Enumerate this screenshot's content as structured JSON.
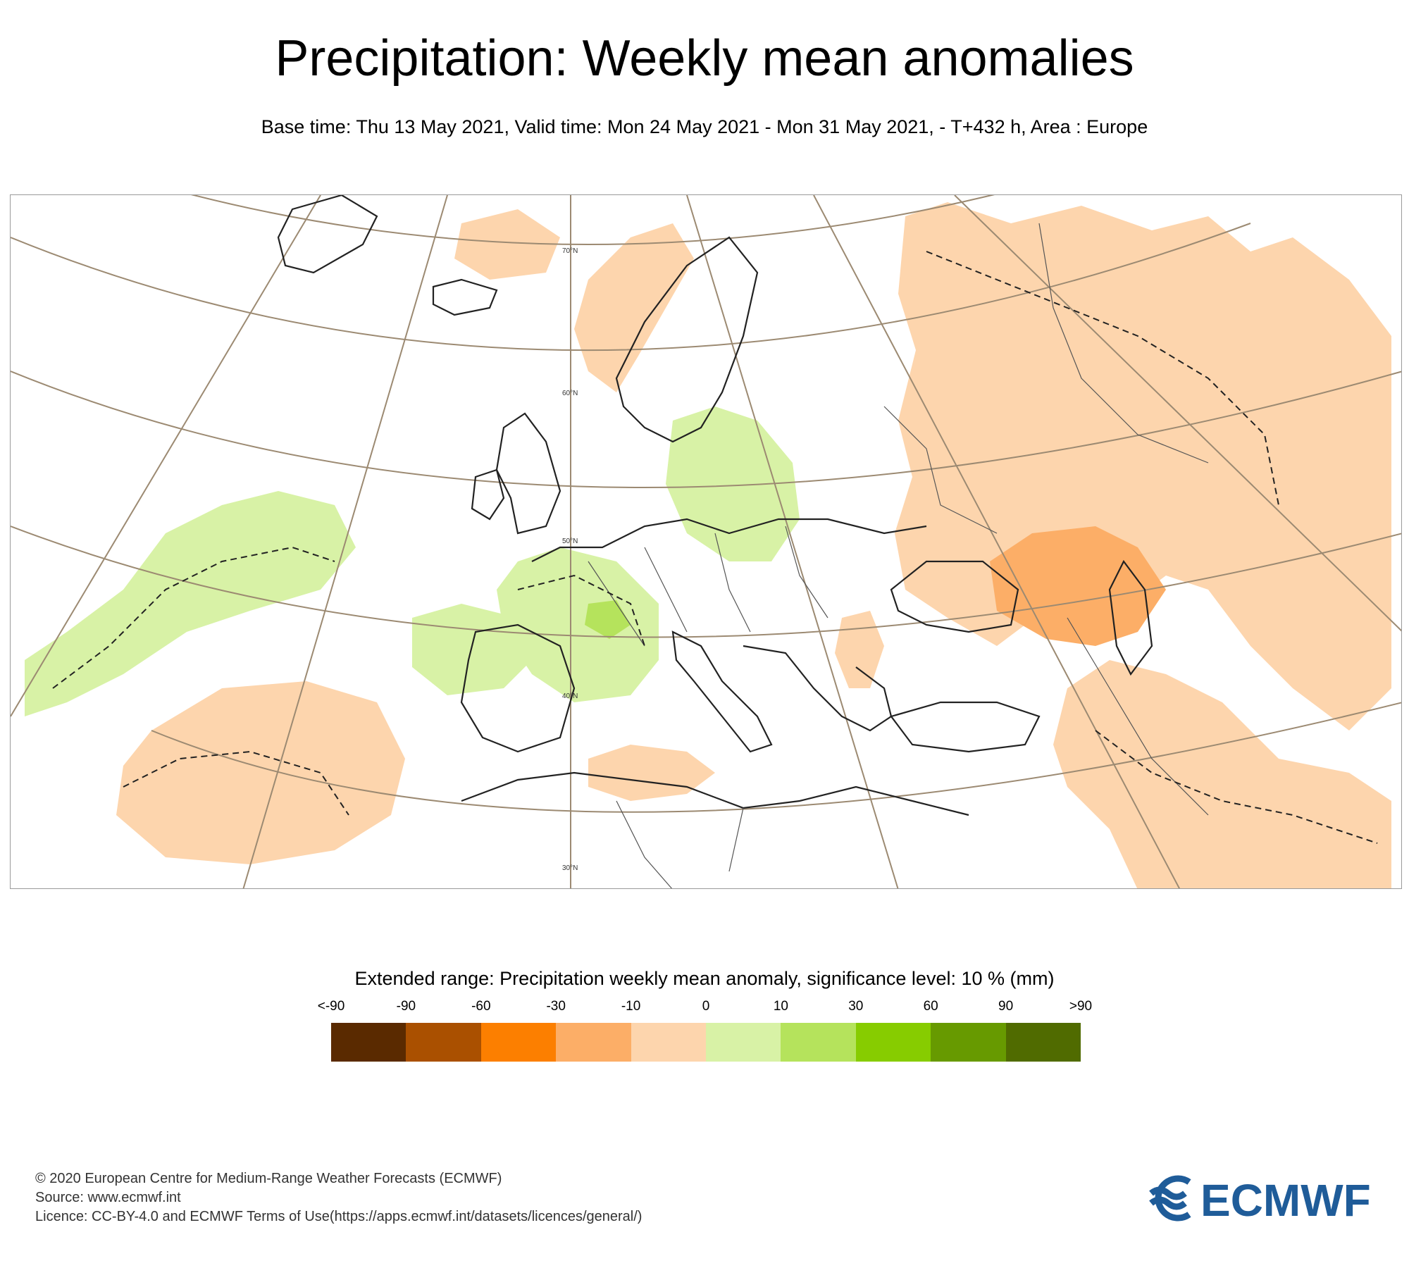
{
  "header": {
    "title": "Precipitation: Weekly mean anomalies",
    "subtitle": "Base time: Thu 13 May 2021, Valid time: Mon 24 May 2021 - Mon 31 May 2021, - T+432 h, Area : Europe"
  },
  "map": {
    "area": "Europe",
    "latitude_labels": [
      "70°N",
      "60°N",
      "50°N",
      "40°N",
      "30°N"
    ],
    "colors": {
      "land_outline": "#222222",
      "graticule": "#9c8a72",
      "dry_light": "#fdd5ad",
      "dry_medium": "#fcae67",
      "wet_light": "#d8f2a6",
      "wet_medium": "#b5e35c"
    }
  },
  "legend": {
    "title": "Extended range: Precipitation weekly mean anomaly, significance level: 10 % (mm)",
    "labels": [
      "<-90",
      "-90",
      "-60",
      "-30",
      "-10",
      "0",
      "10",
      "30",
      "60",
      "90",
      ">90"
    ],
    "colors": [
      "#5a2a00",
      "#aa5000",
      "#fc7f00",
      "#fcae67",
      "#fdd5ad",
      "#d8f2a6",
      "#b5e35c",
      "#87cc00",
      "#679a00",
      "#506b00"
    ]
  },
  "footer": {
    "line1": "© 2020 European Centre for Medium-Range Weather Forecasts (ECMWF)",
    "line2": "Source: www.ecmwf.int",
    "line3": "Licence: CC-BY-4.0 and ECMWF Terms of Use(https://apps.ecmwf.int/datasets/licences/general/)"
  },
  "logo": {
    "text": "ECMWF",
    "color": "#1f5c99"
  }
}
